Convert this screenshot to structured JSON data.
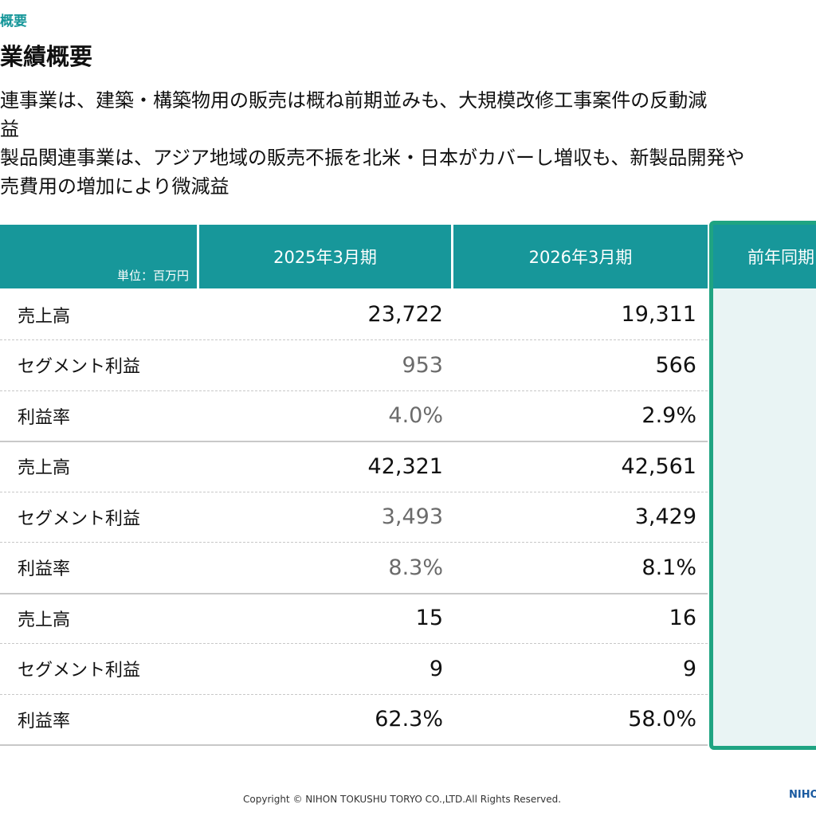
{
  "breadcrumb": "概要",
  "title": "業績概要",
  "bullets": [
    "連事業は、建築・構築物用の販売は概ね前期並みも、大規模改修工事案件の反動減",
    "益",
    "製品関連事業は、アジア地域の販売不振を北米・日本がカバーし増収も、新製品開発や",
    "売費用の増加により微減益"
  ],
  "table": {
    "unit_label": "単位：百万円",
    "columns": [
      "2025年3月期",
      "2026年3月期",
      "前年同期"
    ],
    "rows": [
      {
        "label": "売上高",
        "v2025": "23,722",
        "v2026": "19,311"
      },
      {
        "label": "セグメント利益",
        "v2025": "953",
        "v2026": "566"
      },
      {
        "label": "利益率",
        "v2025": "4.0%",
        "v2026": "2.9%"
      },
      {
        "label": "売上高",
        "v2025": "42,321",
        "v2026": "42,561"
      },
      {
        "label": "セグメント利益",
        "v2025": "3,493",
        "v2026": "3,429"
      },
      {
        "label": "利益率",
        "v2025": "8.3%",
        "v2026": "8.1%"
      },
      {
        "label": "売上高",
        "v2025": "15",
        "v2026": "16"
      },
      {
        "label": "セグメント利益",
        "v2025": "9",
        "v2026": "9"
      },
      {
        "label": "利益率",
        "v2025": "62.3%",
        "v2026": "58.0%"
      }
    ]
  },
  "footer": {
    "copyright": "Copyright © NIHON TOKUSHU TORYO CO.,LTD.All Rights Reserved.",
    "logo_text": "NIHON"
  },
  "colors": {
    "header_teal": "#17979a",
    "highlight_border": "#1fa482",
    "highlight_fill": "#e9f4f4"
  }
}
